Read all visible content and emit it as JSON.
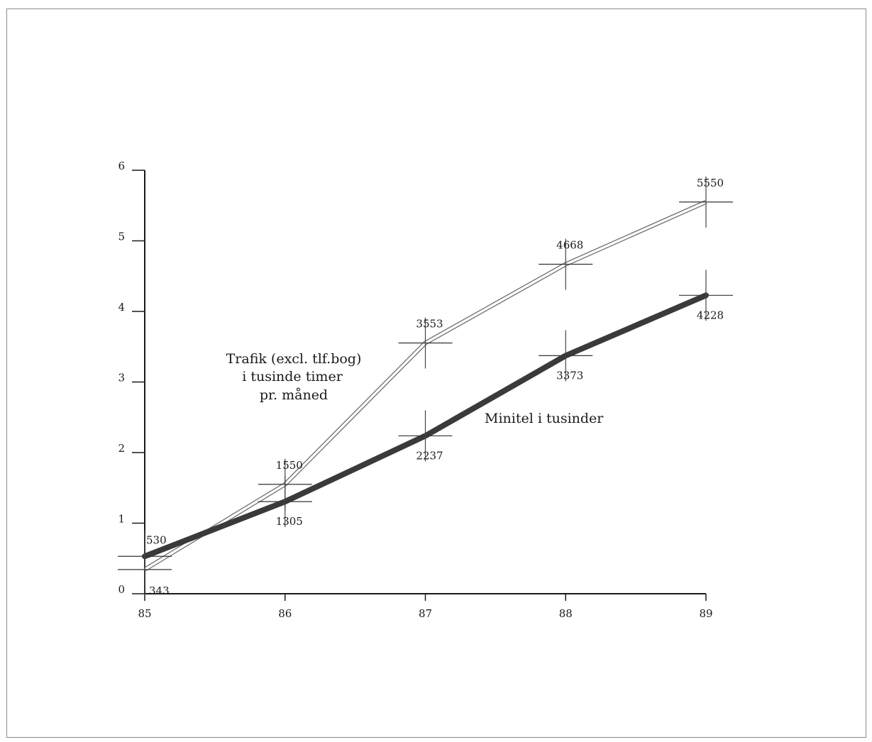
{
  "chart_data": {
    "type": "line",
    "x": [
      "85",
      "86",
      "87",
      "88",
      "89"
    ],
    "ylim": [
      0,
      6
    ],
    "yticks": [
      "0",
      "1",
      "2",
      "3",
      "4",
      "5",
      "6"
    ],
    "grid": false,
    "series": [
      {
        "name": "Trafik (excl. tlf.bog) i tusinde timer pr. måned",
        "style": "hollow",
        "values": [
          0.343,
          1.55,
          3.553,
          4.668,
          5.55
        ],
        "labels": [
          "343",
          "1550",
          "3553",
          "4668",
          "5550"
        ]
      },
      {
        "name": "Minitel i tusinder",
        "style": "thick",
        "values": [
          0.53,
          1.305,
          2.237,
          3.373,
          4.228
        ],
        "labels": [
          "530",
          "1305",
          "2237",
          "3373",
          "4228"
        ]
      }
    ],
    "annotations": {
      "trafik_line1": "Trafik (excl. tlf.bog)",
      "trafik_line2": "i tusinde timer",
      "trafik_line3": "pr. måned",
      "minitel": "Minitel i tusinder"
    },
    "colors": {
      "hollow_outline": "#6f6f6f",
      "thick_line": "#3a3a3a",
      "axis": "#1a1a1a"
    }
  }
}
